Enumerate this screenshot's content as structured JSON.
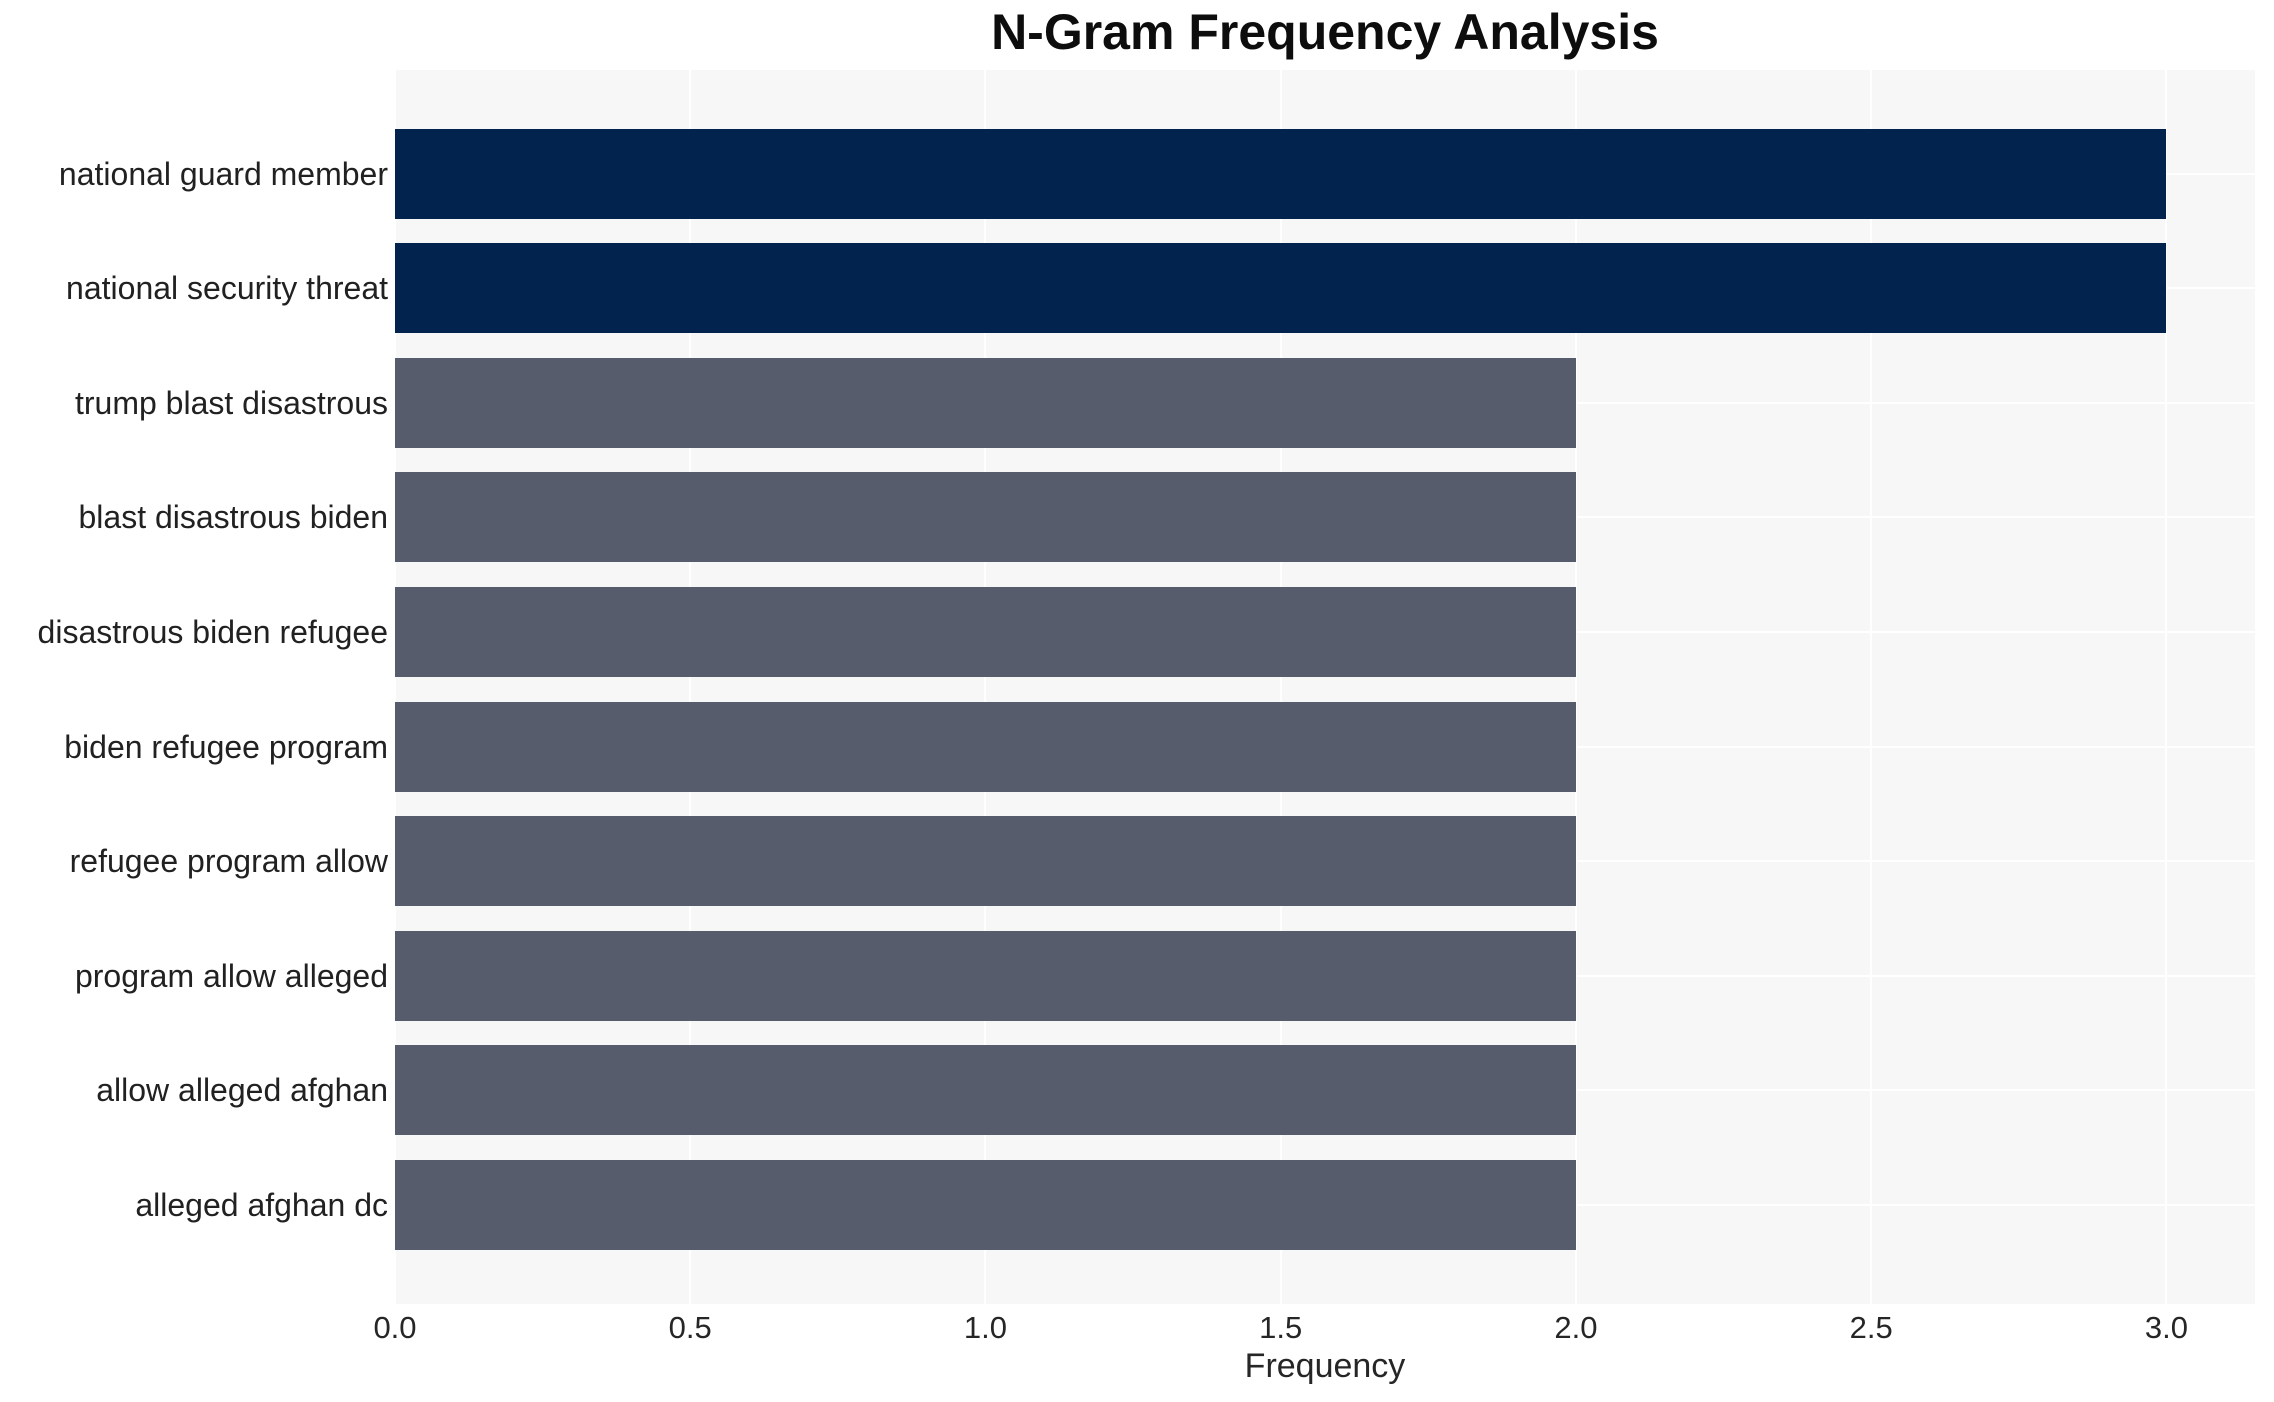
{
  "chart_data": {
    "type": "bar",
    "orientation": "horizontal",
    "title": "N-Gram Frequency Analysis",
    "xlabel": "Frequency",
    "ylabel": "",
    "categories": [
      "national guard member",
      "national security threat",
      "trump blast disastrous",
      "blast disastrous biden",
      "disastrous biden refugee",
      "biden refugee program",
      "refugee program allow",
      "program allow alleged",
      "allow alleged afghan",
      "alleged afghan dc"
    ],
    "values": [
      3,
      3,
      2,
      2,
      2,
      2,
      2,
      2,
      2,
      2
    ],
    "bar_colors": [
      "#02234D",
      "#02234D",
      "#565C6B",
      "#565C6B",
      "#565C6B",
      "#565C6B",
      "#565C6B",
      "#565C6B",
      "#565C6B",
      "#565C6B"
    ],
    "xticks": [
      0,
      0.5,
      1,
      1.5,
      2,
      2.5,
      3
    ],
    "xtick_labels": [
      "0.0",
      "0.5",
      "1.0",
      "1.5",
      "2.0",
      "2.5",
      "3.0"
    ],
    "xlim": [
      0,
      3.15
    ],
    "grid": true,
    "legend": false,
    "colors": {
      "highlight_bar": "#02234D",
      "default_bar": "#565C6B",
      "plot_background": "#F7F7F8",
      "page_background": "#FFFFFF",
      "grid_line": "#FFFFFF",
      "tick_text": "#262626",
      "label_text": "#212121",
      "title_text": "#0D0D0D"
    }
  }
}
